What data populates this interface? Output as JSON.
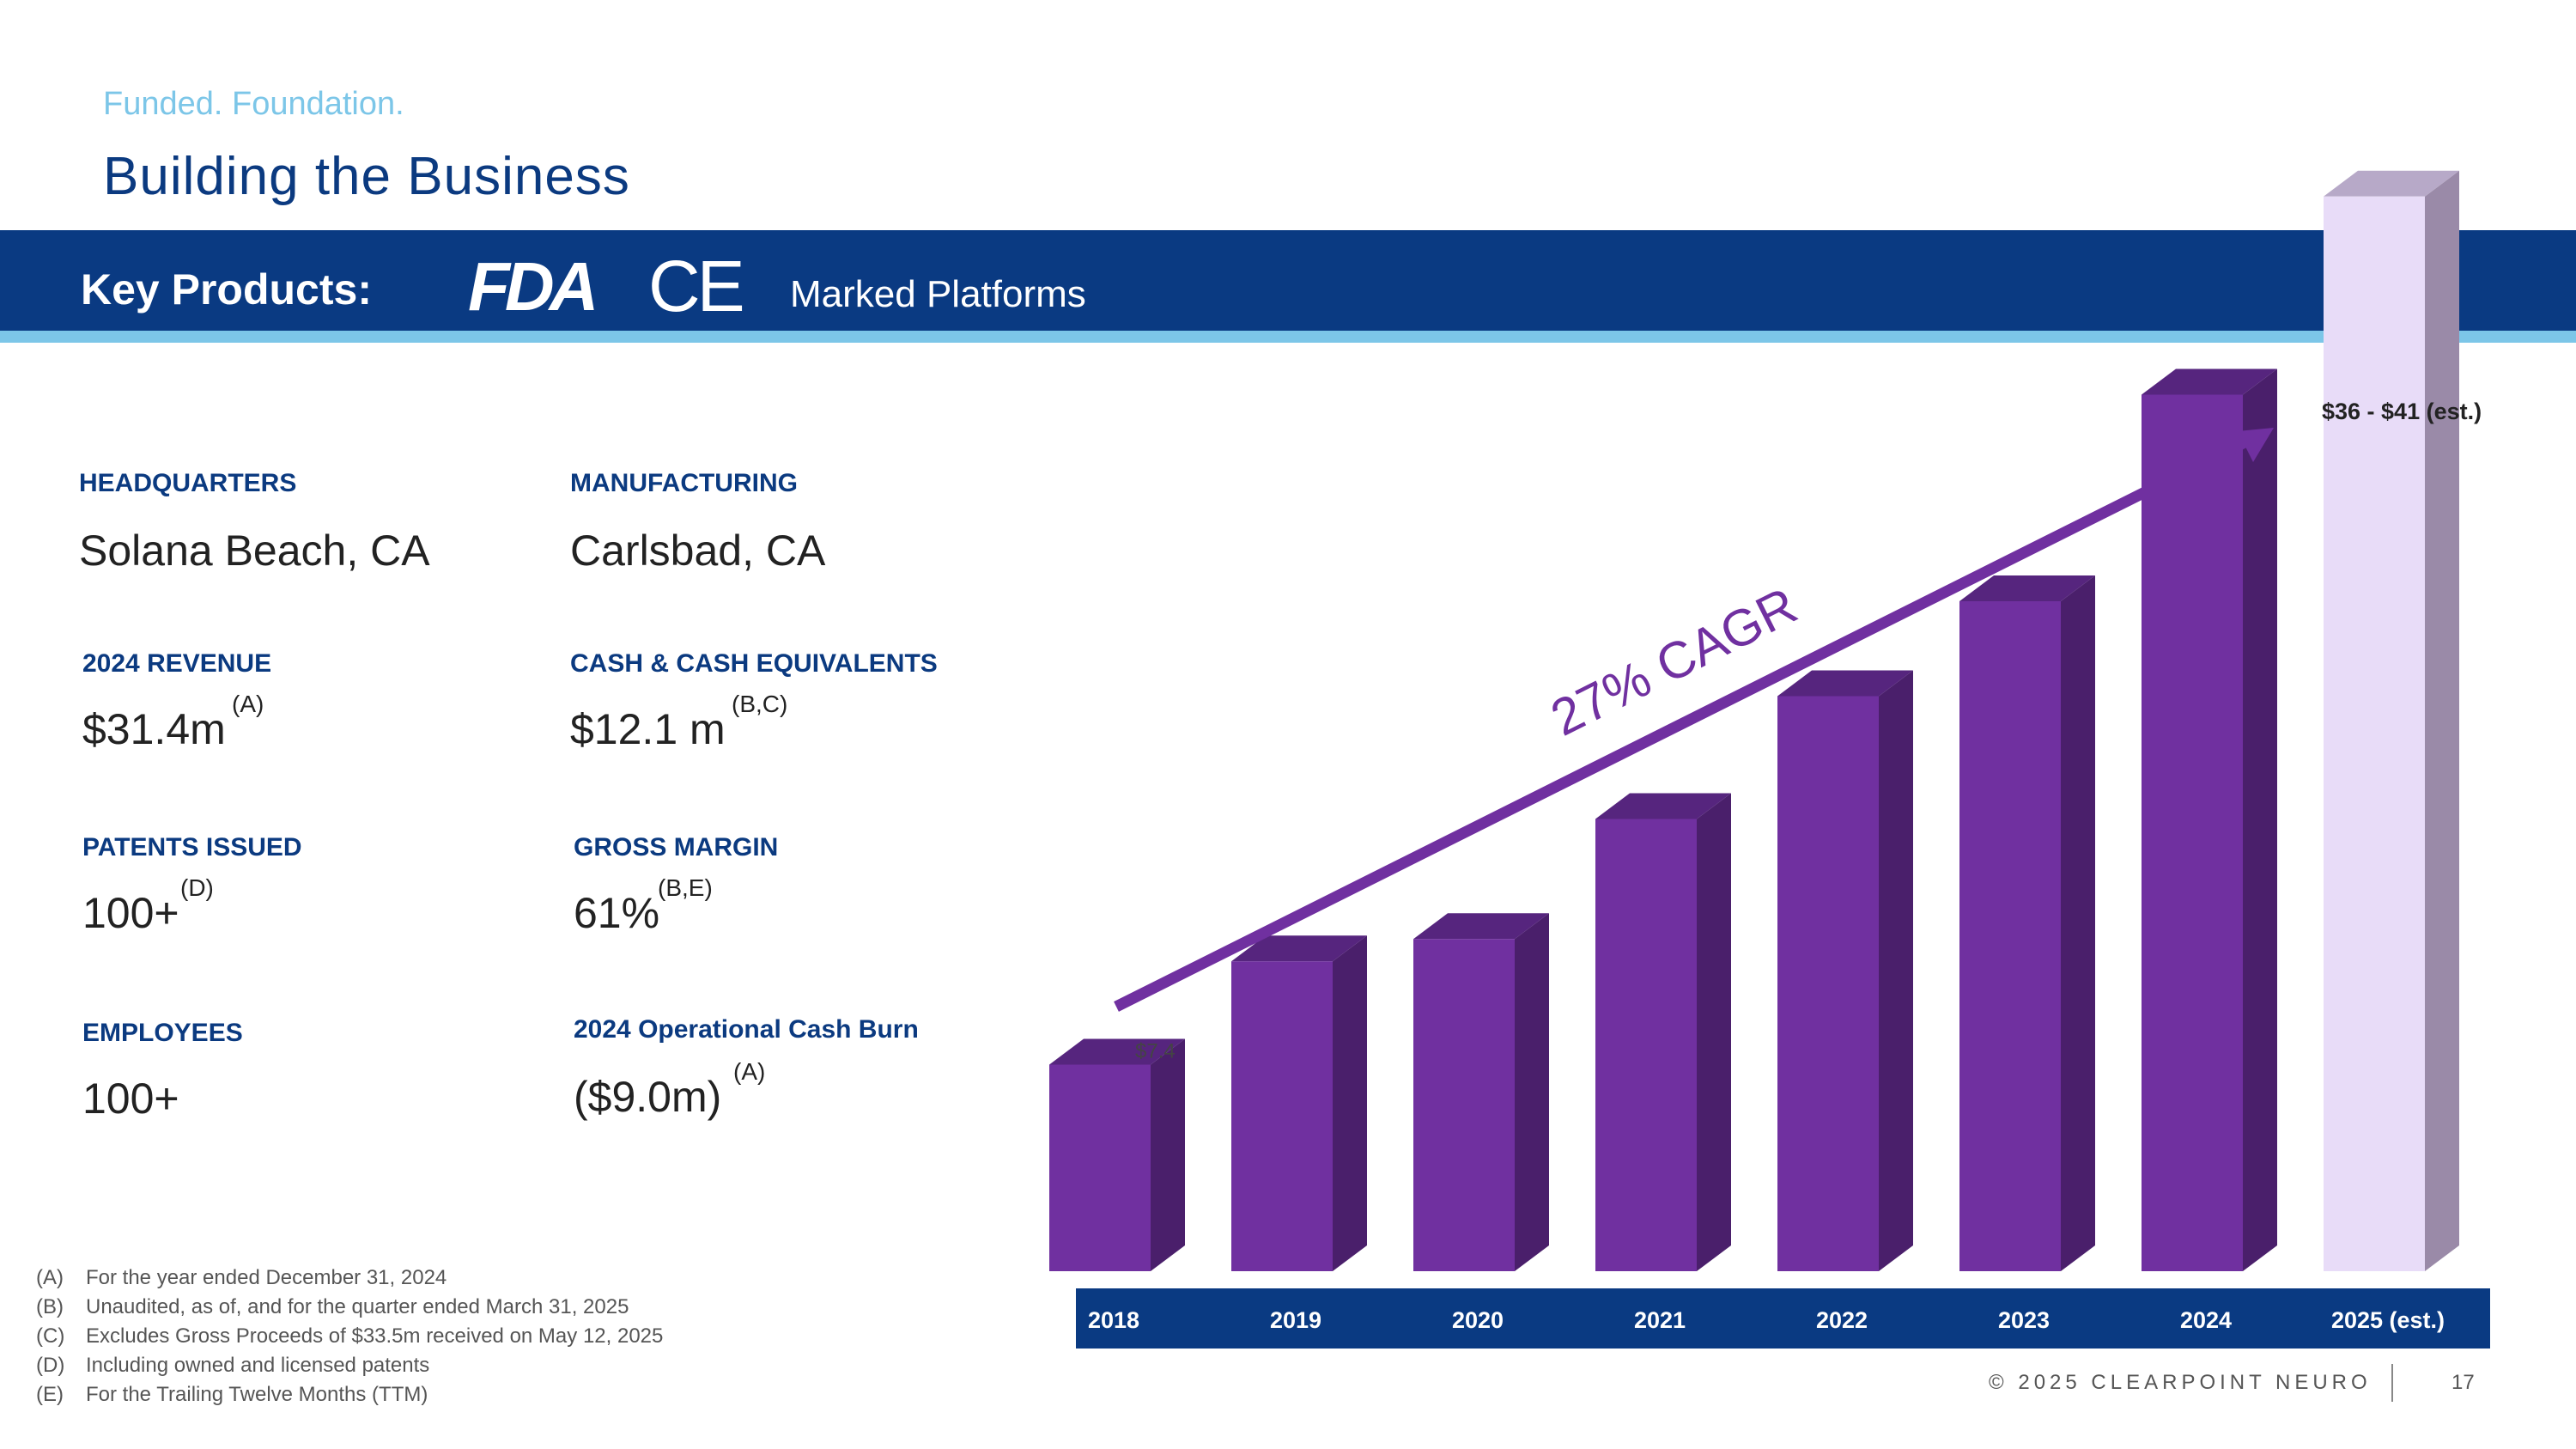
{
  "header": {
    "eyebrow": "Funded. Foundation.",
    "title": "Building the Business"
  },
  "band": {
    "key_products_label": "Key Products:",
    "fda_logo_text": "FDA",
    "ce_logo_text": "CE",
    "marked_label": "Marked Platforms"
  },
  "stats": {
    "headquarters": {
      "label": "HEADQUARTERS",
      "value": "Solana Beach, CA"
    },
    "manufacturing": {
      "label": "MANUFACTURING",
      "value": "Carlsbad, CA"
    },
    "revenue": {
      "label": "2024 REVENUE",
      "value": "$31.4m",
      "note": "(A)"
    },
    "cash": {
      "label": "CASH & CASH EQUIVALENTS",
      "value": "$12.1 m",
      "note": "(B,C)"
    },
    "patents": {
      "label": "PATENTS ISSUED",
      "value": "100+",
      "note": "(D)"
    },
    "gross_margin": {
      "label": "GROSS MARGIN",
      "value": "61%",
      "note": "(B,E)"
    },
    "employees": {
      "label": "EMPLOYEES",
      "value": "100+"
    },
    "cash_burn": {
      "label": "2024 Operational Cash Burn",
      "value": "($9.0m)",
      "note": "(A)"
    }
  },
  "footnotes": [
    {
      "key": "(A)",
      "text": "For the year ended December 31, 2024"
    },
    {
      "key": "(B)",
      "text": "Unaudited, as of, and for the quarter ended March 31, 2025"
    },
    {
      "key": "(C)",
      "text": "Excludes Gross Proceeds of $33.5m received on May 12, 2025"
    },
    {
      "key": "(D)",
      "text": "Including owned and licensed patents"
    },
    {
      "key": "(E)",
      "text": "For the Trailing Twelve Months (TTM)"
    }
  ],
  "footer": {
    "copyright": "© 2025 CLEARPOINT NEURO",
    "page_number": "17"
  },
  "colors": {
    "bar_front": "#7030a0",
    "bar_side": "#4a1f6b",
    "bar_top": "#56257e",
    "est_front": "#e8dcf8",
    "est_side": "#9a8aa8",
    "est_top": "#b7a9c8",
    "axis_band": "#0a3a82",
    "trend": "#7030a0"
  },
  "chart_data": {
    "type": "bar",
    "categories": [
      "2018",
      "2019",
      "2020",
      "2021",
      "2022",
      "2023",
      "2024",
      "2025 (est.)"
    ],
    "values": [
      7.4,
      11.1,
      11.9,
      16.2,
      20.6,
      24.0,
      31.4,
      38.5
    ],
    "estimate_range": [
      36,
      41
    ],
    "ylim": [
      0,
      40
    ],
    "data_labels": [
      "$7.4",
      "",
      "",
      "",
      "",
      "",
      "",
      "$36 - $41 (est.)"
    ],
    "trend_label": "27% CAGR",
    "grid": false
  }
}
